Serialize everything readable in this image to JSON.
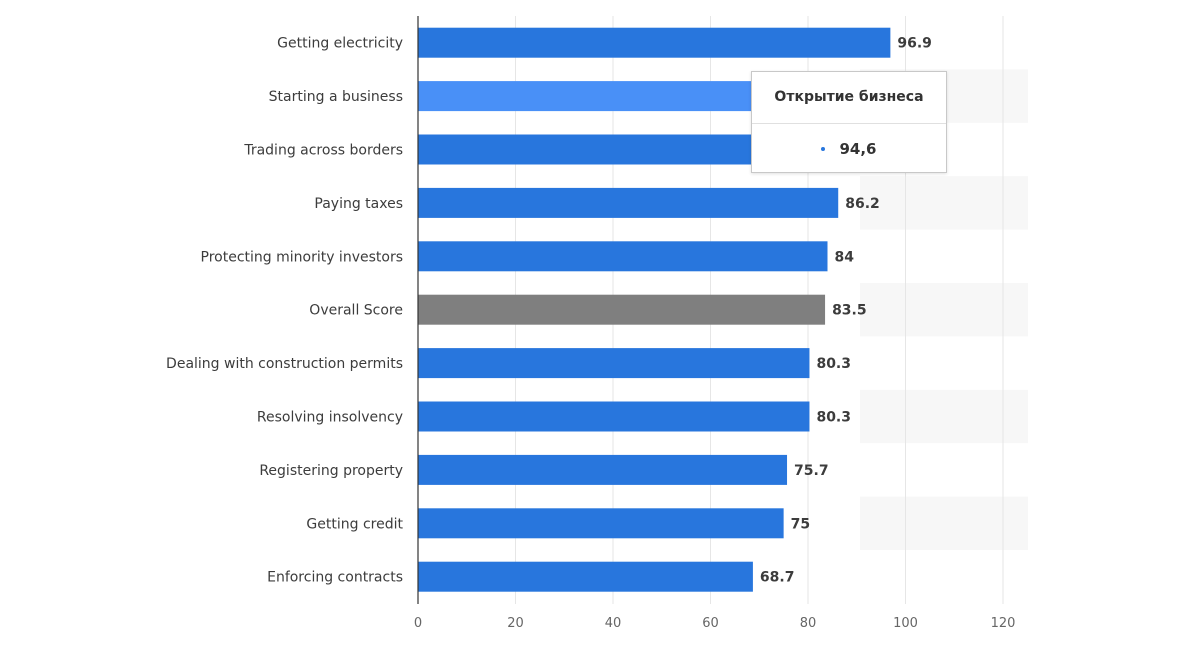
{
  "chart_data": {
    "type": "bar",
    "orientation": "horizontal",
    "categories": [
      "Getting electricity",
      "Starting a business",
      "Trading across borders",
      "Paying taxes",
      "Protecting minority investors",
      "Overall Score",
      "Dealing with construction permits",
      "Resolving insolvency",
      "Registering property",
      "Getting credit",
      "Enforcing contracts"
    ],
    "values": [
      96.9,
      94.6,
      93,
      86.2,
      84,
      83.5,
      80.3,
      80.3,
      75.7,
      75,
      68.7
    ],
    "value_labels": [
      "96.9",
      "",
      "",
      "86.2",
      "84",
      "83.5",
      "80.3",
      "80.3",
      "75.7",
      "75",
      "68.7"
    ],
    "xlim": [
      0,
      120
    ],
    "x_ticks": [
      "0",
      "20",
      "40",
      "60",
      "80",
      "100",
      "120"
    ],
    "grid": true,
    "colors": {
      "bar": "#2876dd",
      "bar_hover": "#4990f7",
      "bar_overall": "#7f7f7f",
      "axis": "#333333",
      "gridline": "#e6e6e6",
      "band": "#f7f7f7"
    },
    "highlight_index": 1,
    "overall_index": 5,
    "tooltip": {
      "title": "Открытие бизнеса",
      "value": "94,6",
      "marker_color": "#2876dd"
    }
  }
}
